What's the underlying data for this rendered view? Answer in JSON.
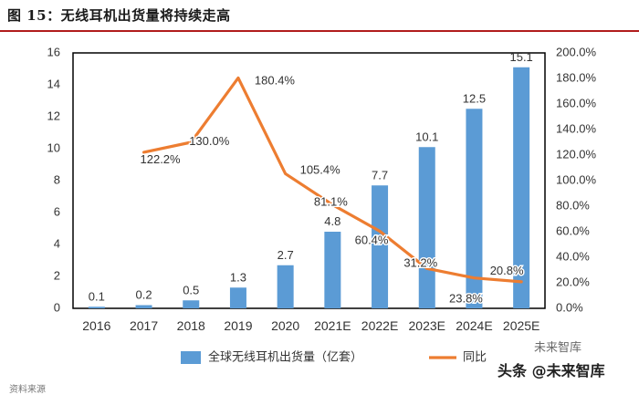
{
  "header": {
    "title": "图 15：无线耳机出货量将持续走高"
  },
  "chart_data": {
    "type": "bar+line",
    "title": "图 15：无线耳机出货量将持续走高",
    "categories": [
      "2016",
      "2017",
      "2018",
      "2019",
      "2020",
      "2021E",
      "2022E",
      "2023E",
      "2024E",
      "2025E"
    ],
    "series": [
      {
        "name": "全球无线耳机出货量（亿套）",
        "type": "bar",
        "axis": "left",
        "color": "#5b9bd5",
        "values": [
          0.1,
          0.2,
          0.5,
          1.3,
          2.7,
          4.8,
          7.7,
          10.1,
          12.5,
          15.1
        ],
        "labels": [
          "0.1",
          "0.2",
          "0.5",
          "1.3",
          "2.7",
          "4.8",
          "7.7",
          "10.1",
          "12.5",
          "15.1"
        ]
      },
      {
        "name": "同比",
        "type": "line",
        "axis": "right",
        "color": "#ed7d31",
        "values": [
          null,
          122.2,
          130.0,
          180.4,
          105.4,
          81.1,
          60.4,
          31.2,
          23.8,
          20.8
        ],
        "labels": [
          "",
          "122.2%",
          "130.0%",
          "180.4%",
          "105.4%",
          "81.1%",
          "60.4%",
          "31.2%",
          "23.8%",
          "20.8%"
        ]
      }
    ],
    "y_left": {
      "min": 0,
      "max": 16,
      "step": 2,
      "ticks": [
        "0",
        "2",
        "4",
        "6",
        "8",
        "10",
        "12",
        "14",
        "16"
      ]
    },
    "y_right": {
      "min": 0,
      "max": 200,
      "step": 20,
      "ticks": [
        "0.0%",
        "20.0%",
        "40.0%",
        "60.0%",
        "80.0%",
        "100.0%",
        "120.0%",
        "140.0%",
        "160.0%",
        "180.0%",
        "200.0%"
      ]
    },
    "legend": {
      "position": "bottom",
      "items": [
        "全球无线耳机出货量（亿套）",
        "同比"
      ]
    }
  },
  "watermark": {
    "text": "头条 @未来智库",
    "faded": "未来智库"
  },
  "footer": {
    "text": "资料来源"
  }
}
